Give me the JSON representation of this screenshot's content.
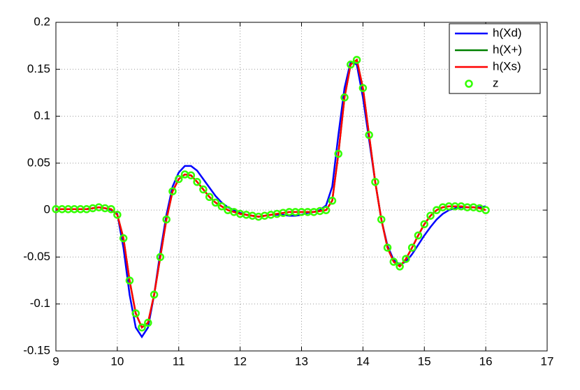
{
  "chart_data": {
    "type": "line",
    "x": [
      9.0,
      9.1,
      9.2,
      9.3,
      9.4,
      9.5,
      9.6,
      9.7,
      9.8,
      9.9,
      10.0,
      10.1,
      10.2,
      10.3,
      10.4,
      10.5,
      10.6,
      10.7,
      10.8,
      10.9,
      11.0,
      11.1,
      11.2,
      11.3,
      11.4,
      11.5,
      11.6,
      11.7,
      11.8,
      11.9,
      12.0,
      12.1,
      12.2,
      12.3,
      12.4,
      12.5,
      12.6,
      12.7,
      12.8,
      12.9,
      13.0,
      13.1,
      13.2,
      13.3,
      13.4,
      13.5,
      13.6,
      13.7,
      13.8,
      13.9,
      14.0,
      14.1,
      14.2,
      14.3,
      14.4,
      14.5,
      14.6,
      14.7,
      14.8,
      14.9,
      15.0,
      15.1,
      15.2,
      15.3,
      15.4,
      15.5,
      15.6,
      15.7,
      15.8,
      15.9,
      16.0
    ],
    "series": [
      {
        "name": "h(Xd)",
        "color": "#0000ff",
        "marker": "line",
        "values": [
          0.001,
          0.001,
          0.001,
          0.001,
          0.001,
          0.001,
          0.002,
          0.003,
          0.002,
          0.0,
          -0.004,
          -0.04,
          -0.09,
          -0.125,
          -0.135,
          -0.125,
          -0.09,
          -0.045,
          -0.005,
          0.025,
          0.04,
          0.047,
          0.047,
          0.042,
          0.033,
          0.024,
          0.015,
          0.008,
          0.003,
          0.0,
          -0.003,
          -0.005,
          -0.006,
          -0.007,
          -0.006,
          -0.005,
          -0.005,
          -0.005,
          -0.006,
          -0.006,
          -0.005,
          -0.003,
          -0.002,
          0.0,
          0.005,
          0.025,
          0.08,
          0.13,
          0.158,
          0.155,
          0.12,
          0.075,
          0.03,
          -0.01,
          -0.038,
          -0.053,
          -0.058,
          -0.055,
          -0.047,
          -0.037,
          -0.027,
          -0.018,
          -0.01,
          -0.004,
          0.0,
          0.002,
          0.003,
          0.003,
          0.003,
          0.003,
          0.004
        ]
      },
      {
        "name": "h(X+)",
        "color": "#008000",
        "marker": "line",
        "values": [
          0.001,
          0.001,
          0.001,
          0.001,
          0.001,
          0.001,
          0.002,
          0.003,
          0.002,
          0.001,
          -0.005,
          -0.03,
          -0.075,
          -0.11,
          -0.125,
          -0.12,
          -0.09,
          -0.05,
          -0.01,
          0.02,
          0.033,
          0.038,
          0.037,
          0.03,
          0.022,
          0.014,
          0.008,
          0.004,
          0.0,
          -0.002,
          -0.004,
          -0.005,
          -0.006,
          -0.007,
          -0.006,
          -0.005,
          -0.004,
          -0.003,
          -0.002,
          -0.002,
          -0.002,
          -0.002,
          -0.002,
          -0.001,
          0.0,
          0.01,
          0.06,
          0.12,
          0.155,
          0.16,
          0.13,
          0.08,
          0.03,
          -0.01,
          -0.04,
          -0.055,
          -0.06,
          -0.052,
          -0.04,
          -0.027,
          -0.015,
          -0.006,
          0.0,
          0.003,
          0.004,
          0.004,
          0.004,
          0.003,
          0.003,
          0.002,
          0.0
        ]
      },
      {
        "name": "h(Xs)",
        "color": "#ff0000",
        "marker": "line",
        "values": [
          0.001,
          0.001,
          0.001,
          0.001,
          0.001,
          0.001,
          0.002,
          0.003,
          0.002,
          0.001,
          -0.005,
          -0.03,
          -0.075,
          -0.11,
          -0.125,
          -0.12,
          -0.09,
          -0.05,
          -0.01,
          0.02,
          0.033,
          0.038,
          0.037,
          0.03,
          0.022,
          0.014,
          0.008,
          0.004,
          0.0,
          -0.002,
          -0.004,
          -0.005,
          -0.006,
          -0.007,
          -0.006,
          -0.005,
          -0.004,
          -0.003,
          -0.002,
          -0.002,
          -0.002,
          -0.002,
          -0.002,
          -0.001,
          0.0,
          0.01,
          0.06,
          0.12,
          0.155,
          0.16,
          0.13,
          0.08,
          0.03,
          -0.01,
          -0.04,
          -0.055,
          -0.06,
          -0.052,
          -0.04,
          -0.027,
          -0.015,
          -0.006,
          0.0,
          0.003,
          0.004,
          0.004,
          0.004,
          0.003,
          0.003,
          0.002,
          0.0
        ]
      },
      {
        "name": "z",
        "color": "#33ff00",
        "marker": "o",
        "values": [
          0.001,
          0.001,
          0.001,
          0.001,
          0.001,
          0.001,
          0.002,
          0.003,
          0.002,
          0.001,
          -0.005,
          -0.03,
          -0.075,
          -0.11,
          -0.125,
          -0.12,
          -0.09,
          -0.05,
          -0.01,
          0.02,
          0.033,
          0.038,
          0.037,
          0.03,
          0.022,
          0.014,
          0.008,
          0.004,
          0.0,
          -0.002,
          -0.004,
          -0.005,
          -0.006,
          -0.007,
          -0.006,
          -0.005,
          -0.004,
          -0.003,
          -0.002,
          -0.002,
          -0.002,
          -0.002,
          -0.002,
          -0.001,
          0.0,
          0.01,
          0.06,
          0.12,
          0.155,
          0.16,
          0.13,
          0.08,
          0.03,
          -0.01,
          -0.04,
          -0.055,
          -0.06,
          -0.052,
          -0.04,
          -0.027,
          -0.015,
          -0.006,
          0.0,
          0.003,
          0.004,
          0.004,
          0.004,
          0.003,
          0.003,
          0.002,
          0.0
        ]
      }
    ],
    "xlim": [
      9,
      17
    ],
    "xticks": [
      9,
      10,
      11,
      12,
      13,
      14,
      15,
      16,
      17
    ],
    "ylim": [
      -0.15,
      0.2
    ],
    "yticks": [
      -0.15,
      -0.1,
      -0.05,
      0,
      0.05,
      0.1,
      0.15,
      0.2
    ],
    "grid": true,
    "legend": "upper-right"
  }
}
